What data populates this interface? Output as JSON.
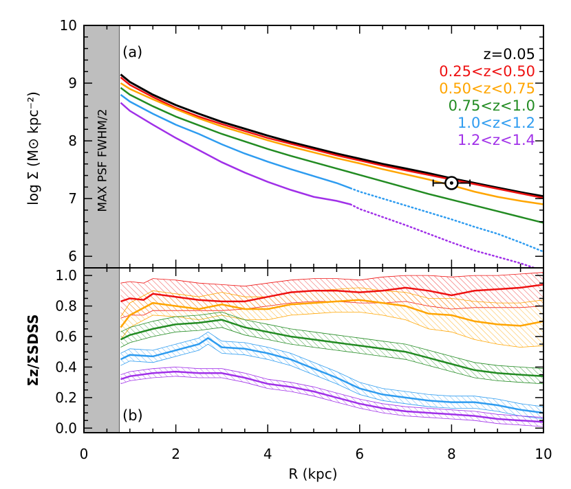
{
  "chart_data": [
    {
      "panel_label": "(a)",
      "type": "line",
      "xlabel": "R (kpc)",
      "ylabel": "log Σ (M⊙ kpc⁻²)",
      "xlim": [
        0,
        10
      ],
      "ylim": [
        5.8,
        10.0
      ],
      "x_ticks": [
        "0",
        "2",
        "4",
        "6",
        "8",
        "10"
      ],
      "y_ticks": [
        "6",
        "7",
        "8",
        "9",
        "10"
      ],
      "shaded_region": {
        "x": [
          0,
          0.77
        ],
        "label": "MAX PSF FWHM/2",
        "color": "#bebebe"
      },
      "legend_position": "top-right",
      "marker": {
        "symbol": "sun",
        "x": 8.0,
        "y": 7.27,
        "xerr": [
          7.6,
          8.4
        ]
      },
      "series": [
        {
          "name": "z=0.05",
          "color": "#000000",
          "x": [
            0.8,
            1.0,
            1.5,
            2,
            2.5,
            3,
            3.5,
            4,
            4.5,
            5,
            5.5,
            6,
            6.5,
            7,
            7.5,
            8,
            8.5,
            9,
            9.5,
            10
          ],
          "y": [
            9.15,
            9.02,
            8.8,
            8.62,
            8.47,
            8.33,
            8.21,
            8.09,
            7.98,
            7.88,
            7.78,
            7.69,
            7.6,
            7.52,
            7.44,
            7.35,
            7.27,
            7.19,
            7.11,
            7.04
          ]
        },
        {
          "name": "0.25<z<0.50",
          "color": "#ee1111",
          "x": [
            0.8,
            1.0,
            1.5,
            2,
            2.5,
            3,
            3.5,
            4,
            4.5,
            5,
            5.5,
            6,
            6.5,
            7,
            7.5,
            8,
            8.5,
            9,
            9.5,
            10
          ],
          "y": [
            9.1,
            8.97,
            8.76,
            8.57,
            8.42,
            8.29,
            8.17,
            8.05,
            7.95,
            7.85,
            7.75,
            7.66,
            7.57,
            7.49,
            7.41,
            7.33,
            7.25,
            7.17,
            7.09,
            7.01
          ]
        },
        {
          "name": "0.50<z<0.75",
          "color": "#ffa500",
          "x": [
            0.8,
            1.0,
            1.5,
            2,
            2.5,
            3,
            3.5,
            4,
            4.5,
            5,
            5.5,
            6,
            6.5,
            7,
            7.5,
            8,
            8.5,
            9,
            9.5,
            10
          ],
          "y": [
            9.0,
            8.9,
            8.72,
            8.55,
            8.39,
            8.25,
            8.13,
            8.01,
            7.9,
            7.8,
            7.7,
            7.61,
            7.51,
            7.42,
            7.33,
            7.23,
            7.12,
            7.03,
            6.96,
            6.9
          ]
        },
        {
          "name": "0.75<z<1.0",
          "color": "#228b22",
          "x": [
            0.8,
            1.0,
            1.5,
            2,
            2.5,
            3,
            3.5,
            4,
            4.5,
            5,
            5.5,
            6,
            6.5,
            7,
            7.5,
            8,
            8.5,
            9,
            9.5,
            10
          ],
          "y": [
            8.92,
            8.8,
            8.6,
            8.42,
            8.27,
            8.12,
            7.99,
            7.86,
            7.74,
            7.63,
            7.52,
            7.41,
            7.3,
            7.19,
            7.08,
            6.98,
            6.88,
            6.78,
            6.68,
            6.58
          ]
        },
        {
          "name": "1.0<z<1.2",
          "color": "#2e9cf0",
          "x": [
            0.8,
            1.0,
            1.5,
            2,
            2.5,
            3,
            3.5,
            4,
            4.5,
            5,
            5.5,
            5.8
          ],
          "y": [
            8.8,
            8.68,
            8.47,
            8.28,
            8.12,
            7.94,
            7.78,
            7.64,
            7.51,
            7.39,
            7.27,
            7.18
          ],
          "dotted_extension": {
            "x": [
              5.8,
              6,
              6.5,
              7,
              7.5,
              8,
              8.5,
              9,
              9.5,
              10
            ],
            "y": [
              7.18,
              7.12,
              7.0,
              6.88,
              6.76,
              6.64,
              6.51,
              6.39,
              6.24,
              6.08
            ]
          }
        },
        {
          "name": "1.2<z<1.4",
          "color": "#a030e8",
          "x": [
            0.8,
            1.0,
            1.5,
            2,
            2.5,
            3,
            3.5,
            4,
            4.5,
            5,
            5.5,
            5.8
          ],
          "y": [
            8.66,
            8.52,
            8.28,
            8.05,
            7.84,
            7.63,
            7.45,
            7.29,
            7.15,
            7.03,
            6.96,
            6.9
          ],
          "dotted_extension": {
            "x": [
              5.8,
              6,
              6.5,
              7,
              7.5,
              8,
              8.5,
              9,
              9.5,
              9.8
            ],
            "y": [
              6.9,
              6.82,
              6.68,
              6.54,
              6.39,
              6.24,
              6.1,
              5.99,
              5.88,
              5.8
            ]
          }
        }
      ]
    },
    {
      "panel_label": "(b)",
      "type": "line",
      "xlabel": "R (kpc)",
      "ylabel": "Σz/ΣSDSS",
      "xlim": [
        0,
        10
      ],
      "ylim": [
        -0.03,
        1.05
      ],
      "x_ticks": [
        "0",
        "2",
        "4",
        "6",
        "8",
        "10"
      ],
      "y_ticks": [
        "0.0",
        "0.2",
        "0.4",
        "0.6",
        "0.8",
        "1.0"
      ],
      "shaded_region": {
        "x": [
          0,
          0.77
        ],
        "color": "#bebebe"
      },
      "series": [
        {
          "name": "0.25<z<0.50",
          "color": "#ee1111",
          "x": [
            0.8,
            1.0,
            1.3,
            1.5,
            2,
            2.5,
            3,
            3.5,
            4,
            4.5,
            5,
            5.5,
            6,
            6.5,
            7,
            7.5,
            8,
            8.5,
            9,
            9.5,
            10
          ],
          "y": [
            0.83,
            0.85,
            0.84,
            0.88,
            0.86,
            0.84,
            0.83,
            0.83,
            0.86,
            0.89,
            0.9,
            0.9,
            0.89,
            0.9,
            0.92,
            0.9,
            0.87,
            0.9,
            0.91,
            0.92,
            0.94
          ],
          "lower": [
            0.72,
            0.74,
            0.74,
            0.77,
            0.77,
            0.77,
            0.77,
            0.78,
            0.8,
            0.82,
            0.83,
            0.83,
            0.82,
            0.82,
            0.83,
            0.8,
            0.78,
            0.79,
            0.79,
            0.79,
            0.8
          ],
          "upper": [
            0.95,
            0.96,
            0.95,
            0.98,
            0.97,
            0.95,
            0.94,
            0.93,
            0.95,
            0.97,
            0.98,
            0.98,
            0.97,
            0.99,
            1.0,
            1.0,
            0.99,
            1.0,
            1.0,
            1.01,
            1.02
          ]
        },
        {
          "name": "0.50<z<0.75",
          "color": "#ffa500",
          "x": [
            0.8,
            1.0,
            1.5,
            2,
            2.5,
            3,
            3.5,
            4,
            4.5,
            5,
            5.5,
            6,
            6.5,
            7,
            7.5,
            8,
            8.5,
            9,
            9.5,
            10
          ],
          "y": [
            0.66,
            0.74,
            0.82,
            0.8,
            0.78,
            0.81,
            0.78,
            0.78,
            0.81,
            0.82,
            0.83,
            0.84,
            0.82,
            0.8,
            0.75,
            0.74,
            0.7,
            0.68,
            0.67,
            0.7
          ],
          "lower": [
            0.58,
            0.66,
            0.74,
            0.73,
            0.71,
            0.74,
            0.71,
            0.71,
            0.74,
            0.75,
            0.76,
            0.76,
            0.74,
            0.71,
            0.65,
            0.63,
            0.58,
            0.55,
            0.53,
            0.54
          ],
          "upper": [
            0.73,
            0.82,
            0.9,
            0.88,
            0.86,
            0.89,
            0.86,
            0.86,
            0.89,
            0.9,
            0.91,
            0.92,
            0.9,
            0.89,
            0.85,
            0.85,
            0.83,
            0.82,
            0.82,
            0.84
          ]
        },
        {
          "name": "0.75<z<1.0",
          "color": "#228b22",
          "x": [
            0.8,
            1.0,
            1.5,
            2,
            2.5,
            3,
            3.5,
            4,
            4.5,
            5,
            5.5,
            6,
            6.5,
            7,
            7.5,
            8,
            8.5,
            9,
            9.5,
            10
          ],
          "y": [
            0.58,
            0.61,
            0.65,
            0.68,
            0.69,
            0.71,
            0.66,
            0.63,
            0.6,
            0.58,
            0.56,
            0.54,
            0.52,
            0.5,
            0.46,
            0.42,
            0.38,
            0.36,
            0.35,
            0.34
          ],
          "lower": [
            0.53,
            0.56,
            0.6,
            0.63,
            0.64,
            0.66,
            0.61,
            0.58,
            0.55,
            0.53,
            0.51,
            0.49,
            0.47,
            0.45,
            0.41,
            0.37,
            0.33,
            0.31,
            0.3,
            0.29
          ],
          "upper": [
            0.63,
            0.66,
            0.7,
            0.73,
            0.74,
            0.76,
            0.71,
            0.68,
            0.65,
            0.63,
            0.61,
            0.59,
            0.57,
            0.55,
            0.51,
            0.47,
            0.43,
            0.41,
            0.4,
            0.39
          ]
        },
        {
          "name": "1.0<z<1.2",
          "color": "#2e9cf0",
          "x": [
            0.8,
            1.0,
            1.5,
            2,
            2.5,
            2.7,
            3,
            3.5,
            4,
            4.5,
            5,
            5.5,
            6,
            6.5,
            7,
            7.5,
            8,
            8.5,
            9,
            9.5,
            10
          ],
          "y": [
            0.45,
            0.48,
            0.47,
            0.51,
            0.55,
            0.59,
            0.53,
            0.52,
            0.49,
            0.45,
            0.39,
            0.33,
            0.26,
            0.22,
            0.2,
            0.18,
            0.17,
            0.17,
            0.15,
            0.12,
            0.1
          ],
          "lower": [
            0.41,
            0.44,
            0.43,
            0.47,
            0.51,
            0.55,
            0.49,
            0.48,
            0.45,
            0.41,
            0.35,
            0.29,
            0.22,
            0.18,
            0.16,
            0.14,
            0.13,
            0.13,
            0.11,
            0.08,
            0.06
          ],
          "upper": [
            0.49,
            0.52,
            0.51,
            0.55,
            0.59,
            0.63,
            0.57,
            0.56,
            0.53,
            0.49,
            0.43,
            0.37,
            0.3,
            0.26,
            0.24,
            0.22,
            0.21,
            0.21,
            0.19,
            0.16,
            0.14
          ]
        },
        {
          "name": "1.2<z<1.4",
          "color": "#a030e8",
          "x": [
            0.8,
            1.0,
            1.5,
            2,
            2.5,
            3,
            3.5,
            4,
            4.5,
            5,
            5.5,
            6,
            6.5,
            7,
            7.5,
            8,
            8.5,
            9,
            9.5,
            10
          ],
          "y": [
            0.32,
            0.34,
            0.36,
            0.37,
            0.36,
            0.36,
            0.33,
            0.29,
            0.27,
            0.24,
            0.2,
            0.16,
            0.13,
            0.11,
            0.1,
            0.09,
            0.08,
            0.06,
            0.05,
            0.04
          ],
          "lower": [
            0.29,
            0.31,
            0.33,
            0.34,
            0.33,
            0.33,
            0.3,
            0.26,
            0.24,
            0.21,
            0.17,
            0.13,
            0.1,
            0.08,
            0.07,
            0.06,
            0.05,
            0.03,
            0.02,
            0.01
          ],
          "upper": [
            0.35,
            0.37,
            0.39,
            0.4,
            0.39,
            0.39,
            0.36,
            0.32,
            0.3,
            0.27,
            0.23,
            0.19,
            0.16,
            0.14,
            0.13,
            0.12,
            0.11,
            0.09,
            0.08,
            0.07
          ]
        }
      ]
    }
  ]
}
